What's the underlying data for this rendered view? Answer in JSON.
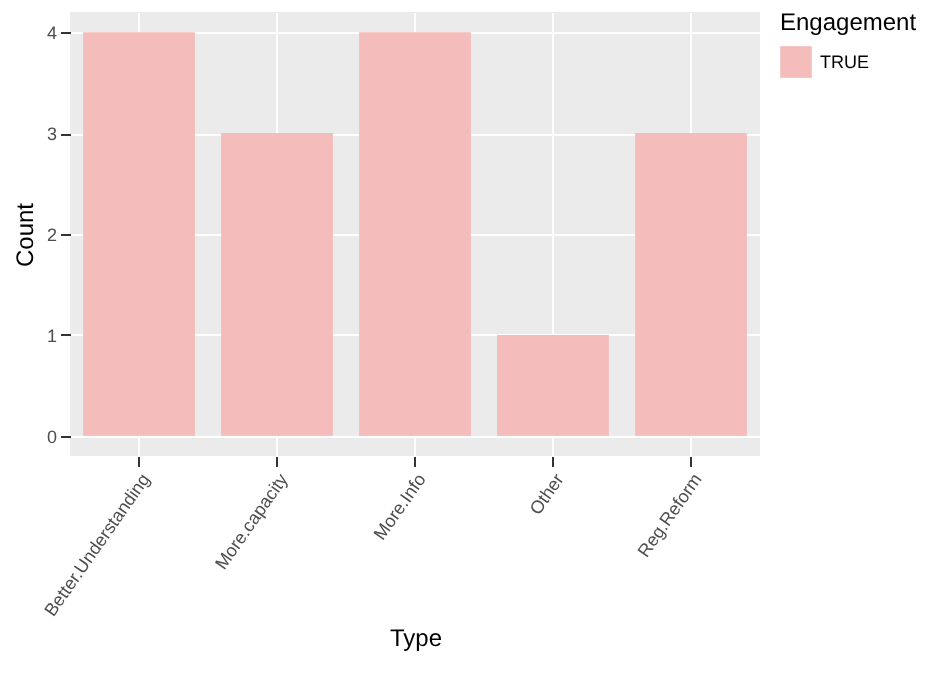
{
  "chart_data": {
    "type": "bar",
    "xlabel": "Type",
    "ylabel": "Count",
    "legend_title": "Engagement",
    "categories": [
      "Better.Understanding",
      "More.capacity",
      "More.Info",
      "Other",
      "Reg.Reform"
    ],
    "series": [
      {
        "name": "TRUE",
        "color": "#f4bcbb",
        "values": [
          4,
          3,
          4,
          1,
          3
        ]
      }
    ],
    "ylim": [
      -0.2,
      4.2
    ],
    "yticks": [
      0,
      1,
      2,
      3,
      4
    ],
    "grid": true,
    "legend": "right"
  }
}
